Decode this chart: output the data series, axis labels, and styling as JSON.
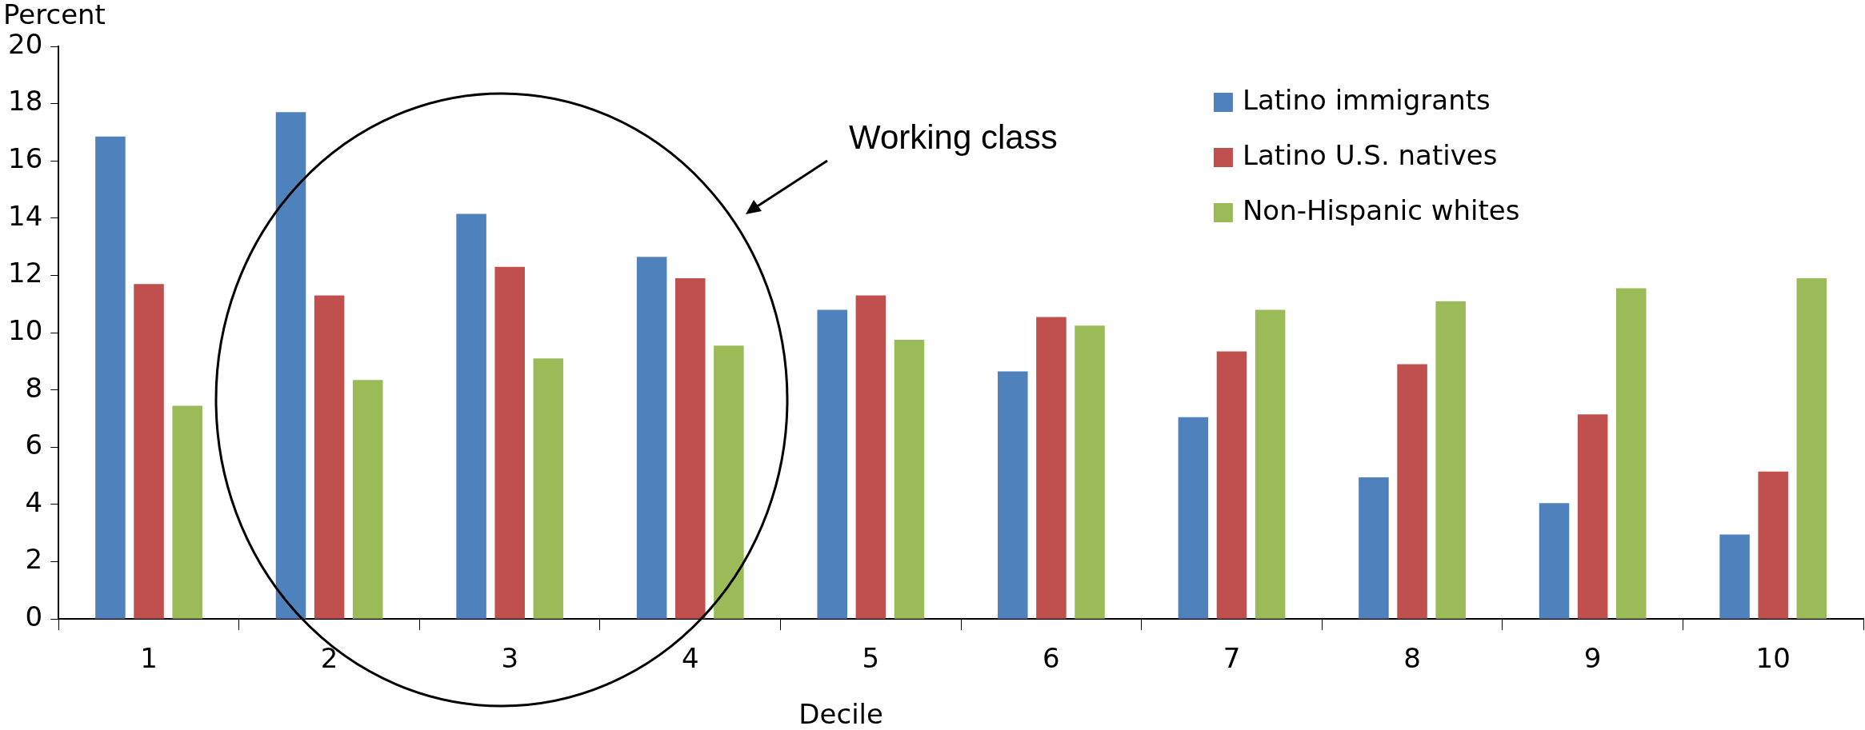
{
  "chart_data": {
    "type": "bar",
    "xlabel": "Decile",
    "ylabel": "Percent",
    "categories": [
      "1",
      "2",
      "3",
      "4",
      "5",
      "6",
      "7",
      "8",
      "9",
      "10"
    ],
    "series": [
      {
        "name": "Latino immigrants",
        "color": "#4f81bd",
        "values": [
          16.85,
          17.7,
          14.15,
          12.65,
          10.8,
          8.65,
          7.05,
          4.95,
          4.05,
          2.95
        ]
      },
      {
        "name": "Latino U.S. natives",
        "color": "#c0504d",
        "values": [
          11.7,
          11.3,
          12.3,
          11.9,
          11.3,
          10.55,
          9.35,
          8.9,
          7.15,
          5.15
        ]
      },
      {
        "name": "Non-Hispanic whites",
        "color": "#9bbb59",
        "values": [
          7.45,
          8.35,
          9.1,
          9.55,
          9.75,
          10.25,
          10.8,
          11.1,
          11.55,
          11.9
        ]
      }
    ],
    "ylim": [
      0,
      20
    ],
    "yticks": [
      0,
      2,
      4,
      6,
      8,
      10,
      12,
      14,
      16,
      18,
      20
    ],
    "grid": false,
    "legend": "top right",
    "annotations": [
      "Working class"
    ]
  }
}
